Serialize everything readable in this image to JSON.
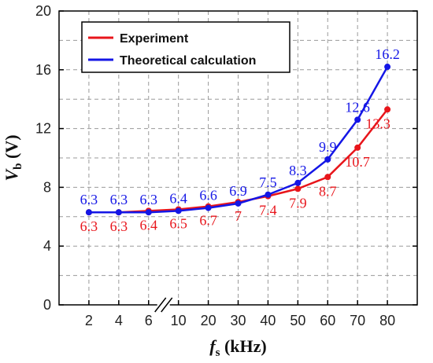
{
  "chart_data": {
    "type": "line",
    "categories": [
      "2",
      "4",
      "6",
      "10",
      "20",
      "30",
      "40",
      "50",
      "60",
      "70",
      "80"
    ],
    "axis_break_after_category": "6",
    "ylim": [
      0,
      20
    ],
    "yticks": [
      "0",
      "4",
      "8",
      "12",
      "16",
      "20"
    ],
    "xlabel_var": "f",
    "xlabel_sub": "s",
    "xlabel_unit": " (kHz)",
    "ylabel_var": "V",
    "ylabel_sub": "b",
    "ylabel_unit": " (V)",
    "grid": true,
    "legend_position": "top-left",
    "series": [
      {
        "name": "Experiment",
        "color": "#e8151b",
        "values": [
          6.3,
          6.3,
          6.4,
          6.5,
          6.7,
          7,
          7.4,
          7.9,
          8.7,
          10.7,
          13.3
        ],
        "labels": [
          "6.3",
          "6.3",
          "6.4",
          "6.5",
          "6.7",
          "7",
          "7.4",
          "7.9",
          "8.7",
          "10.7",
          "13.3"
        ]
      },
      {
        "name": "Theoretical calculation",
        "color": "#1416e6",
        "values": [
          6.3,
          6.3,
          6.3,
          6.4,
          6.6,
          6.9,
          7.5,
          8.3,
          9.9,
          12.6,
          16.2
        ],
        "labels": [
          "6.3",
          "6.3",
          "6.3",
          "6.4",
          "6.6",
          "6.9",
          "7.5",
          "8.3",
          "9.9",
          "12.6",
          "16.2"
        ]
      }
    ]
  }
}
